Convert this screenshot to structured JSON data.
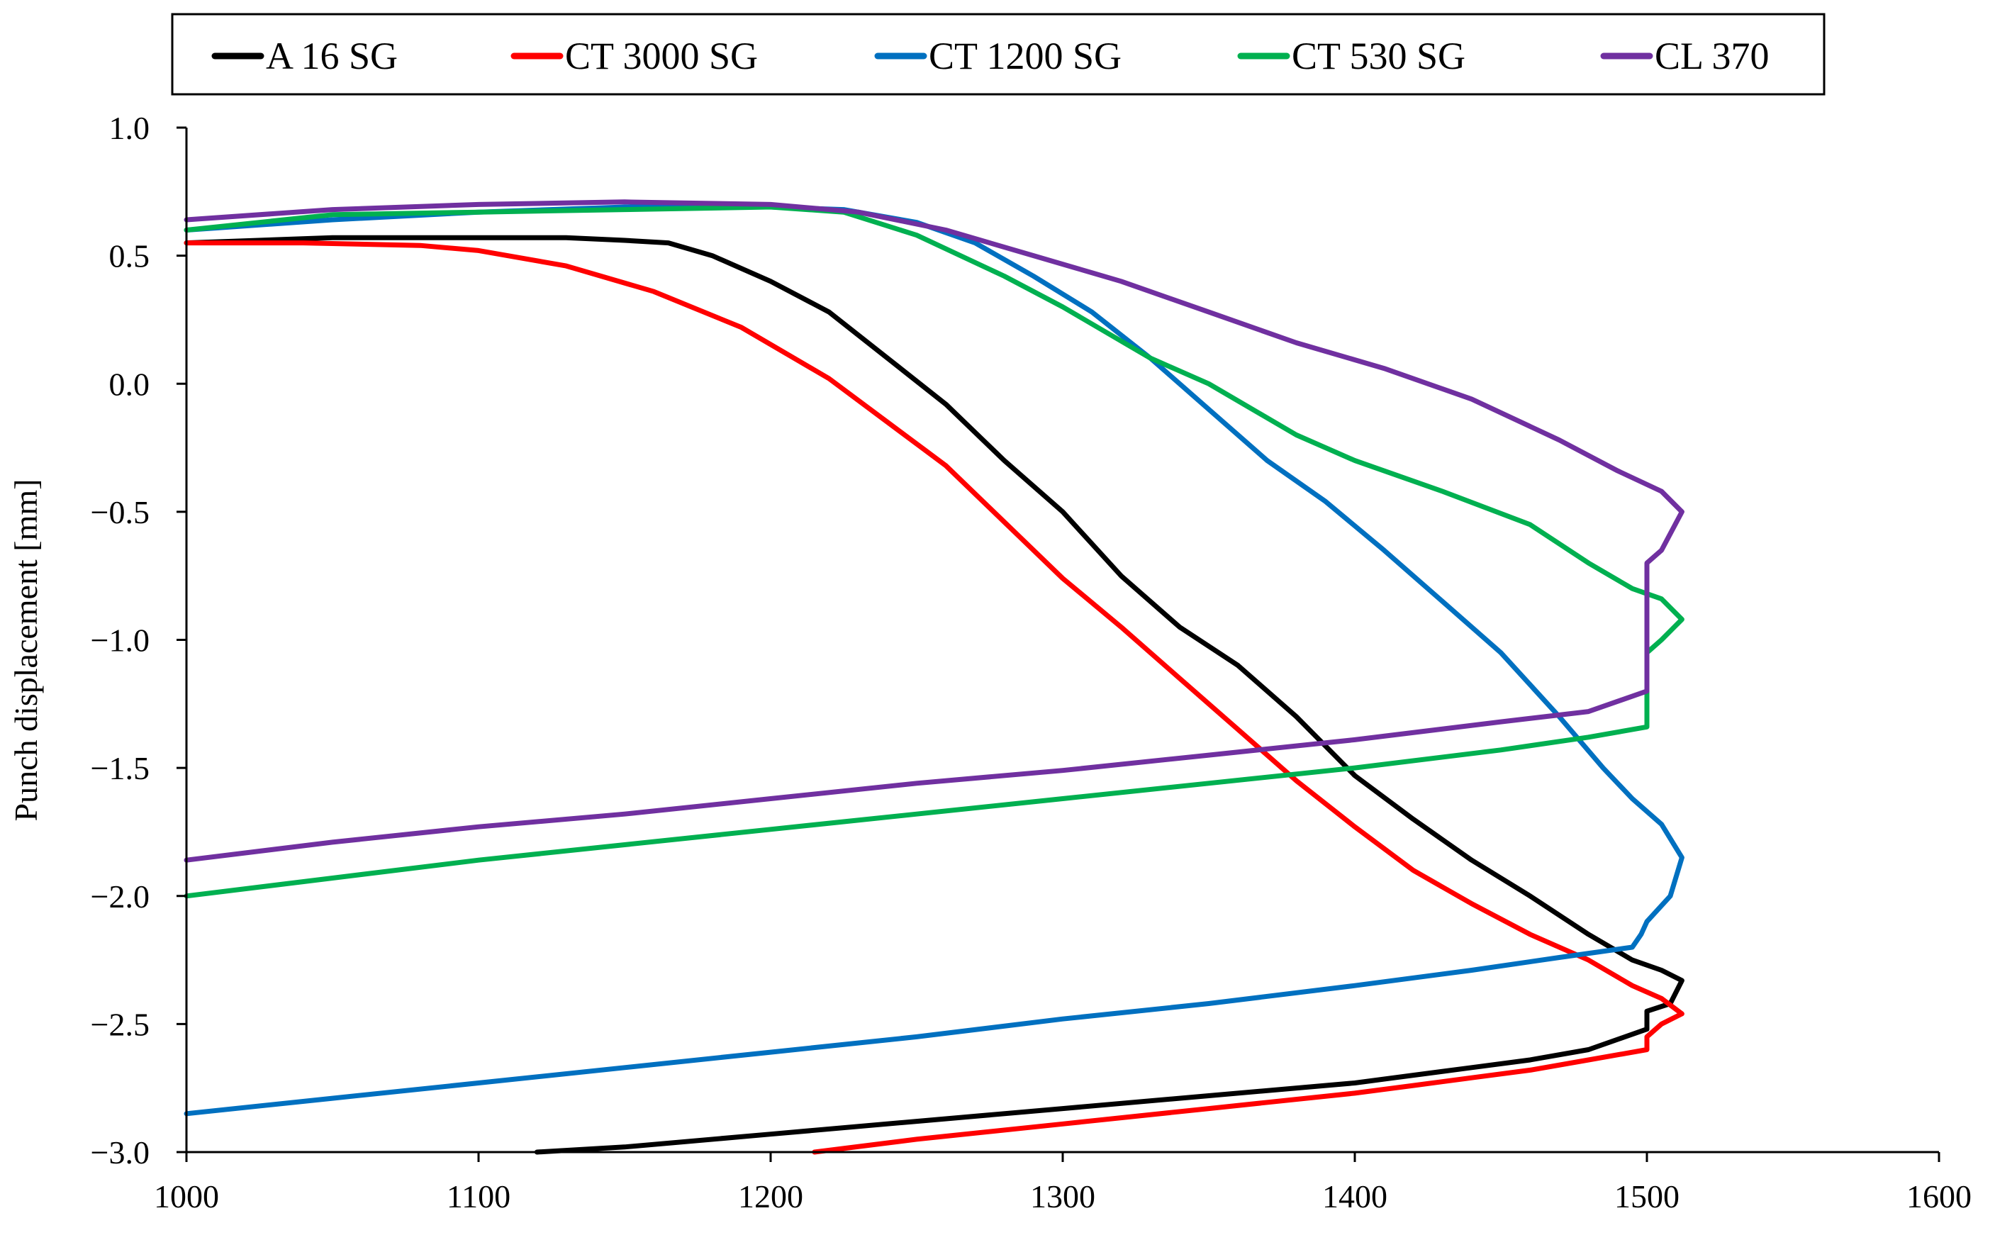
{
  "chart_data": {
    "type": "line",
    "title": "",
    "xlabel": "",
    "ylabel": "Punch displacement [mm]",
    "xlim": [
      1000,
      1600
    ],
    "ylim": [
      -3.0,
      1.0
    ],
    "x_ticks": [
      1000,
      1100,
      1200,
      1300,
      1400,
      1500,
      1600
    ],
    "y_ticks": [
      1.0,
      0.5,
      0.0,
      -0.5,
      -1.0,
      -1.5,
      -2.0,
      -2.5,
      -3.0
    ],
    "x_tick_labels": [
      "1000",
      "1100",
      "1200",
      "1300",
      "1400",
      "1500",
      "1600"
    ],
    "y_tick_labels": [
      "1.0",
      "0.5",
      "0.0",
      "−0.5",
      "−1.0",
      "−1.5",
      "−2.0",
      "−2.5",
      "−3.0"
    ],
    "grid": false,
    "legend_position": "top",
    "series": [
      {
        "name": "A 16 SG",
        "color": "#000000",
        "points": [
          [
            1000,
            0.55
          ],
          [
            1050,
            0.57
          ],
          [
            1100,
            0.57
          ],
          [
            1130,
            0.57
          ],
          [
            1150,
            0.56
          ],
          [
            1165,
            0.55
          ],
          [
            1180,
            0.5
          ],
          [
            1200,
            0.4
          ],
          [
            1220,
            0.28
          ],
          [
            1240,
            0.1
          ],
          [
            1260,
            -0.08
          ],
          [
            1280,
            -0.3
          ],
          [
            1300,
            -0.5
          ],
          [
            1320,
            -0.75
          ],
          [
            1340,
            -0.95
          ],
          [
            1360,
            -1.1
          ],
          [
            1380,
            -1.3
          ],
          [
            1400,
            -1.53
          ],
          [
            1420,
            -1.7
          ],
          [
            1440,
            -1.86
          ],
          [
            1460,
            -2.0
          ],
          [
            1480,
            -2.15
          ],
          [
            1495,
            -2.25
          ],
          [
            1505,
            -2.29
          ],
          [
            1512,
            -2.33
          ],
          [
            1508,
            -2.42
          ],
          [
            1500,
            -2.45
          ],
          [
            1500,
            -2.52
          ],
          [
            1480,
            -2.6
          ],
          [
            1460,
            -2.64
          ],
          [
            1440,
            -2.67
          ],
          [
            1420,
            -2.7
          ],
          [
            1400,
            -2.73
          ],
          [
            1350,
            -2.78
          ],
          [
            1300,
            -2.83
          ],
          [
            1250,
            -2.88
          ],
          [
            1200,
            -2.93
          ],
          [
            1150,
            -2.98
          ],
          [
            1120,
            -3.0
          ]
        ]
      },
      {
        "name": "CT 3000 SG",
        "color": "#ff0000",
        "points": [
          [
            1000,
            0.55
          ],
          [
            1040,
            0.55
          ],
          [
            1080,
            0.54
          ],
          [
            1100,
            0.52
          ],
          [
            1130,
            0.46
          ],
          [
            1160,
            0.36
          ],
          [
            1190,
            0.22
          ],
          [
            1220,
            0.02
          ],
          [
            1240,
            -0.15
          ],
          [
            1260,
            -0.32
          ],
          [
            1280,
            -0.54
          ],
          [
            1300,
            -0.76
          ],
          [
            1320,
            -0.95
          ],
          [
            1340,
            -1.15
          ],
          [
            1360,
            -1.35
          ],
          [
            1380,
            -1.55
          ],
          [
            1400,
            -1.73
          ],
          [
            1420,
            -1.9
          ],
          [
            1440,
            -2.03
          ],
          [
            1460,
            -2.15
          ],
          [
            1480,
            -2.25
          ],
          [
            1495,
            -2.35
          ],
          [
            1505,
            -2.4
          ],
          [
            1512,
            -2.46
          ],
          [
            1505,
            -2.5
          ],
          [
            1500,
            -2.55
          ],
          [
            1500,
            -2.6
          ],
          [
            1480,
            -2.64
          ],
          [
            1460,
            -2.68
          ],
          [
            1440,
            -2.71
          ],
          [
            1420,
            -2.74
          ],
          [
            1400,
            -2.77
          ],
          [
            1350,
            -2.83
          ],
          [
            1300,
            -2.89
          ],
          [
            1250,
            -2.95
          ],
          [
            1215,
            -3.0
          ]
        ]
      },
      {
        "name": "CT 1200 SG",
        "color": "#0070c0",
        "points": [
          [
            1000,
            0.6
          ],
          [
            1050,
            0.64
          ],
          [
            1100,
            0.67
          ],
          [
            1150,
            0.69
          ],
          [
            1200,
            0.69
          ],
          [
            1225,
            0.68
          ],
          [
            1250,
            0.63
          ],
          [
            1270,
            0.55
          ],
          [
            1290,
            0.42
          ],
          [
            1310,
            0.28
          ],
          [
            1330,
            0.1
          ],
          [
            1350,
            -0.1
          ],
          [
            1370,
            -0.3
          ],
          [
            1390,
            -0.46
          ],
          [
            1410,
            -0.65
          ],
          [
            1430,
            -0.85
          ],
          [
            1450,
            -1.05
          ],
          [
            1470,
            -1.3
          ],
          [
            1485,
            -1.5
          ],
          [
            1495,
            -1.62
          ],
          [
            1505,
            -1.72
          ],
          [
            1512,
            -1.85
          ],
          [
            1508,
            -2.0
          ],
          [
            1500,
            -2.1
          ],
          [
            1498,
            -2.15
          ],
          [
            1495,
            -2.2
          ],
          [
            1470,
            -2.24
          ],
          [
            1440,
            -2.29
          ],
          [
            1400,
            -2.35
          ],
          [
            1350,
            -2.42
          ],
          [
            1300,
            -2.48
          ],
          [
            1250,
            -2.55
          ],
          [
            1200,
            -2.61
          ],
          [
            1150,
            -2.67
          ],
          [
            1100,
            -2.73
          ],
          [
            1050,
            -2.79
          ],
          [
            1000,
            -2.85
          ]
        ]
      },
      {
        "name": "CT 530 SG",
        "color": "#00b050",
        "points": [
          [
            1000,
            0.6
          ],
          [
            1050,
            0.66
          ],
          [
            1100,
            0.67
          ],
          [
            1150,
            0.68
          ],
          [
            1200,
            0.69
          ],
          [
            1225,
            0.67
          ],
          [
            1250,
            0.58
          ],
          [
            1280,
            0.42
          ],
          [
            1300,
            0.3
          ],
          [
            1330,
            0.1
          ],
          [
            1350,
            0.0
          ],
          [
            1380,
            -0.2
          ],
          [
            1400,
            -0.3
          ],
          [
            1430,
            -0.42
          ],
          [
            1460,
            -0.55
          ],
          [
            1480,
            -0.7
          ],
          [
            1495,
            -0.8
          ],
          [
            1505,
            -0.84
          ],
          [
            1512,
            -0.92
          ],
          [
            1505,
            -1.0
          ],
          [
            1500,
            -1.05
          ],
          [
            1500,
            -1.2
          ],
          [
            1500,
            -1.34
          ],
          [
            1480,
            -1.38
          ],
          [
            1450,
            -1.43
          ],
          [
            1400,
            -1.5
          ],
          [
            1350,
            -1.56
          ],
          [
            1300,
            -1.62
          ],
          [
            1250,
            -1.68
          ],
          [
            1200,
            -1.74
          ],
          [
            1150,
            -1.8
          ],
          [
            1100,
            -1.86
          ],
          [
            1050,
            -1.93
          ],
          [
            1000,
            -2.0
          ]
        ]
      },
      {
        "name": "CL 370",
        "color": "#7030a0",
        "points": [
          [
            1000,
            0.64
          ],
          [
            1050,
            0.68
          ],
          [
            1100,
            0.7
          ],
          [
            1150,
            0.71
          ],
          [
            1200,
            0.7
          ],
          [
            1230,
            0.67
          ],
          [
            1260,
            0.6
          ],
          [
            1290,
            0.5
          ],
          [
            1320,
            0.4
          ],
          [
            1350,
            0.28
          ],
          [
            1380,
            0.16
          ],
          [
            1410,
            0.06
          ],
          [
            1440,
            -0.06
          ],
          [
            1470,
            -0.22
          ],
          [
            1490,
            -0.34
          ],
          [
            1505,
            -0.42
          ],
          [
            1512,
            -0.5
          ],
          [
            1505,
            -0.65
          ],
          [
            1500,
            -0.7
          ],
          [
            1500,
            -0.85
          ],
          [
            1500,
            -1.05
          ],
          [
            1500,
            -1.2
          ],
          [
            1480,
            -1.28
          ],
          [
            1450,
            -1.32
          ],
          [
            1400,
            -1.39
          ],
          [
            1350,
            -1.45
          ],
          [
            1300,
            -1.51
          ],
          [
            1250,
            -1.56
          ],
          [
            1200,
            -1.62
          ],
          [
            1150,
            -1.68
          ],
          [
            1100,
            -1.73
          ],
          [
            1050,
            -1.79
          ],
          [
            1000,
            -1.86
          ]
        ]
      }
    ]
  }
}
